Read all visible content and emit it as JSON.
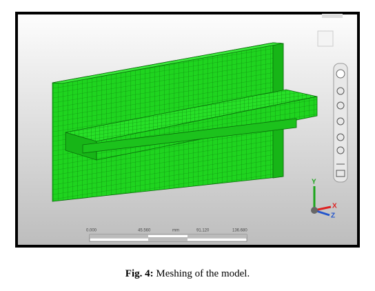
{
  "figure": {
    "scale_bar": {
      "labels": [
        "0.000",
        "45.560",
        "mm",
        "91.120",
        "136.680"
      ]
    },
    "triad": {
      "axes": [
        "Y",
        "X",
        "Z"
      ]
    }
  },
  "caption": {
    "label": "Fig. 4:",
    "text": "Meshing of the model."
  }
}
